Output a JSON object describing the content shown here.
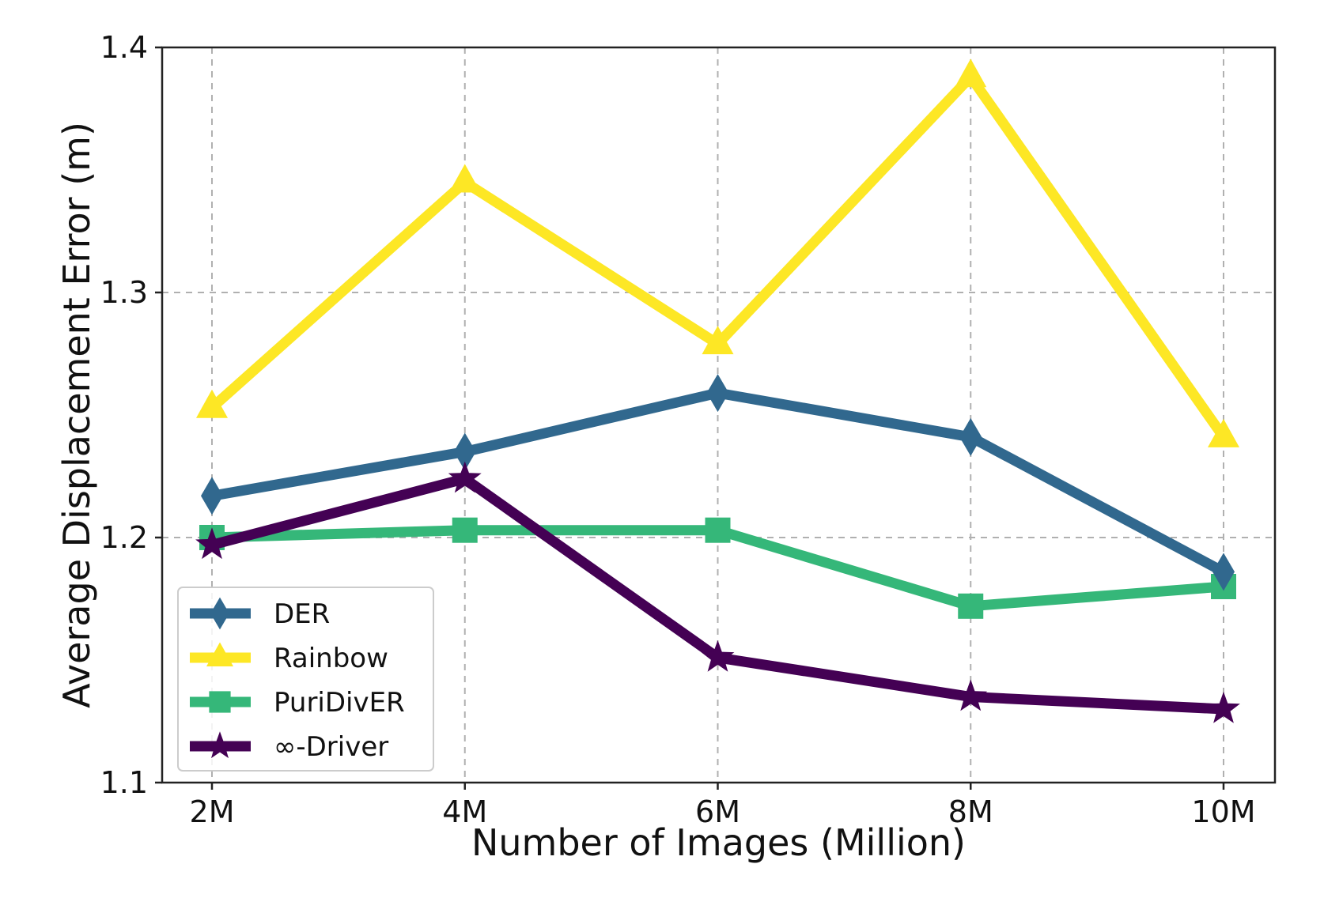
{
  "chart_data": {
    "type": "line",
    "title": "",
    "xlabel": "Number of Images (Million)",
    "ylabel": "Average Displacement Error (m)",
    "categories": [
      "2M",
      "4M",
      "6M",
      "8M",
      "10M"
    ],
    "ylim": [
      1.1,
      1.4
    ],
    "yticks": [
      "1.1",
      "1.2",
      "1.3",
      "1.4"
    ],
    "grid": true,
    "legend_position": "lower-left",
    "series": [
      {
        "name": "DER",
        "color": "#31688e",
        "marker": "diamond",
        "values": [
          1.217,
          1.235,
          1.259,
          1.241,
          1.186
        ]
      },
      {
        "name": "Rainbow",
        "color": "#fde725",
        "marker": "triangle",
        "values": [
          1.253,
          1.345,
          1.279,
          1.388,
          1.241
        ]
      },
      {
        "name": "PuriDivER",
        "color": "#35b779",
        "marker": "square",
        "values": [
          1.2,
          1.203,
          1.203,
          1.172,
          1.18
        ]
      },
      {
        "name": "∞-Driver",
        "color": "#440154",
        "marker": "star",
        "values": [
          1.197,
          1.224,
          1.151,
          1.135,
          1.13
        ]
      }
    ]
  }
}
